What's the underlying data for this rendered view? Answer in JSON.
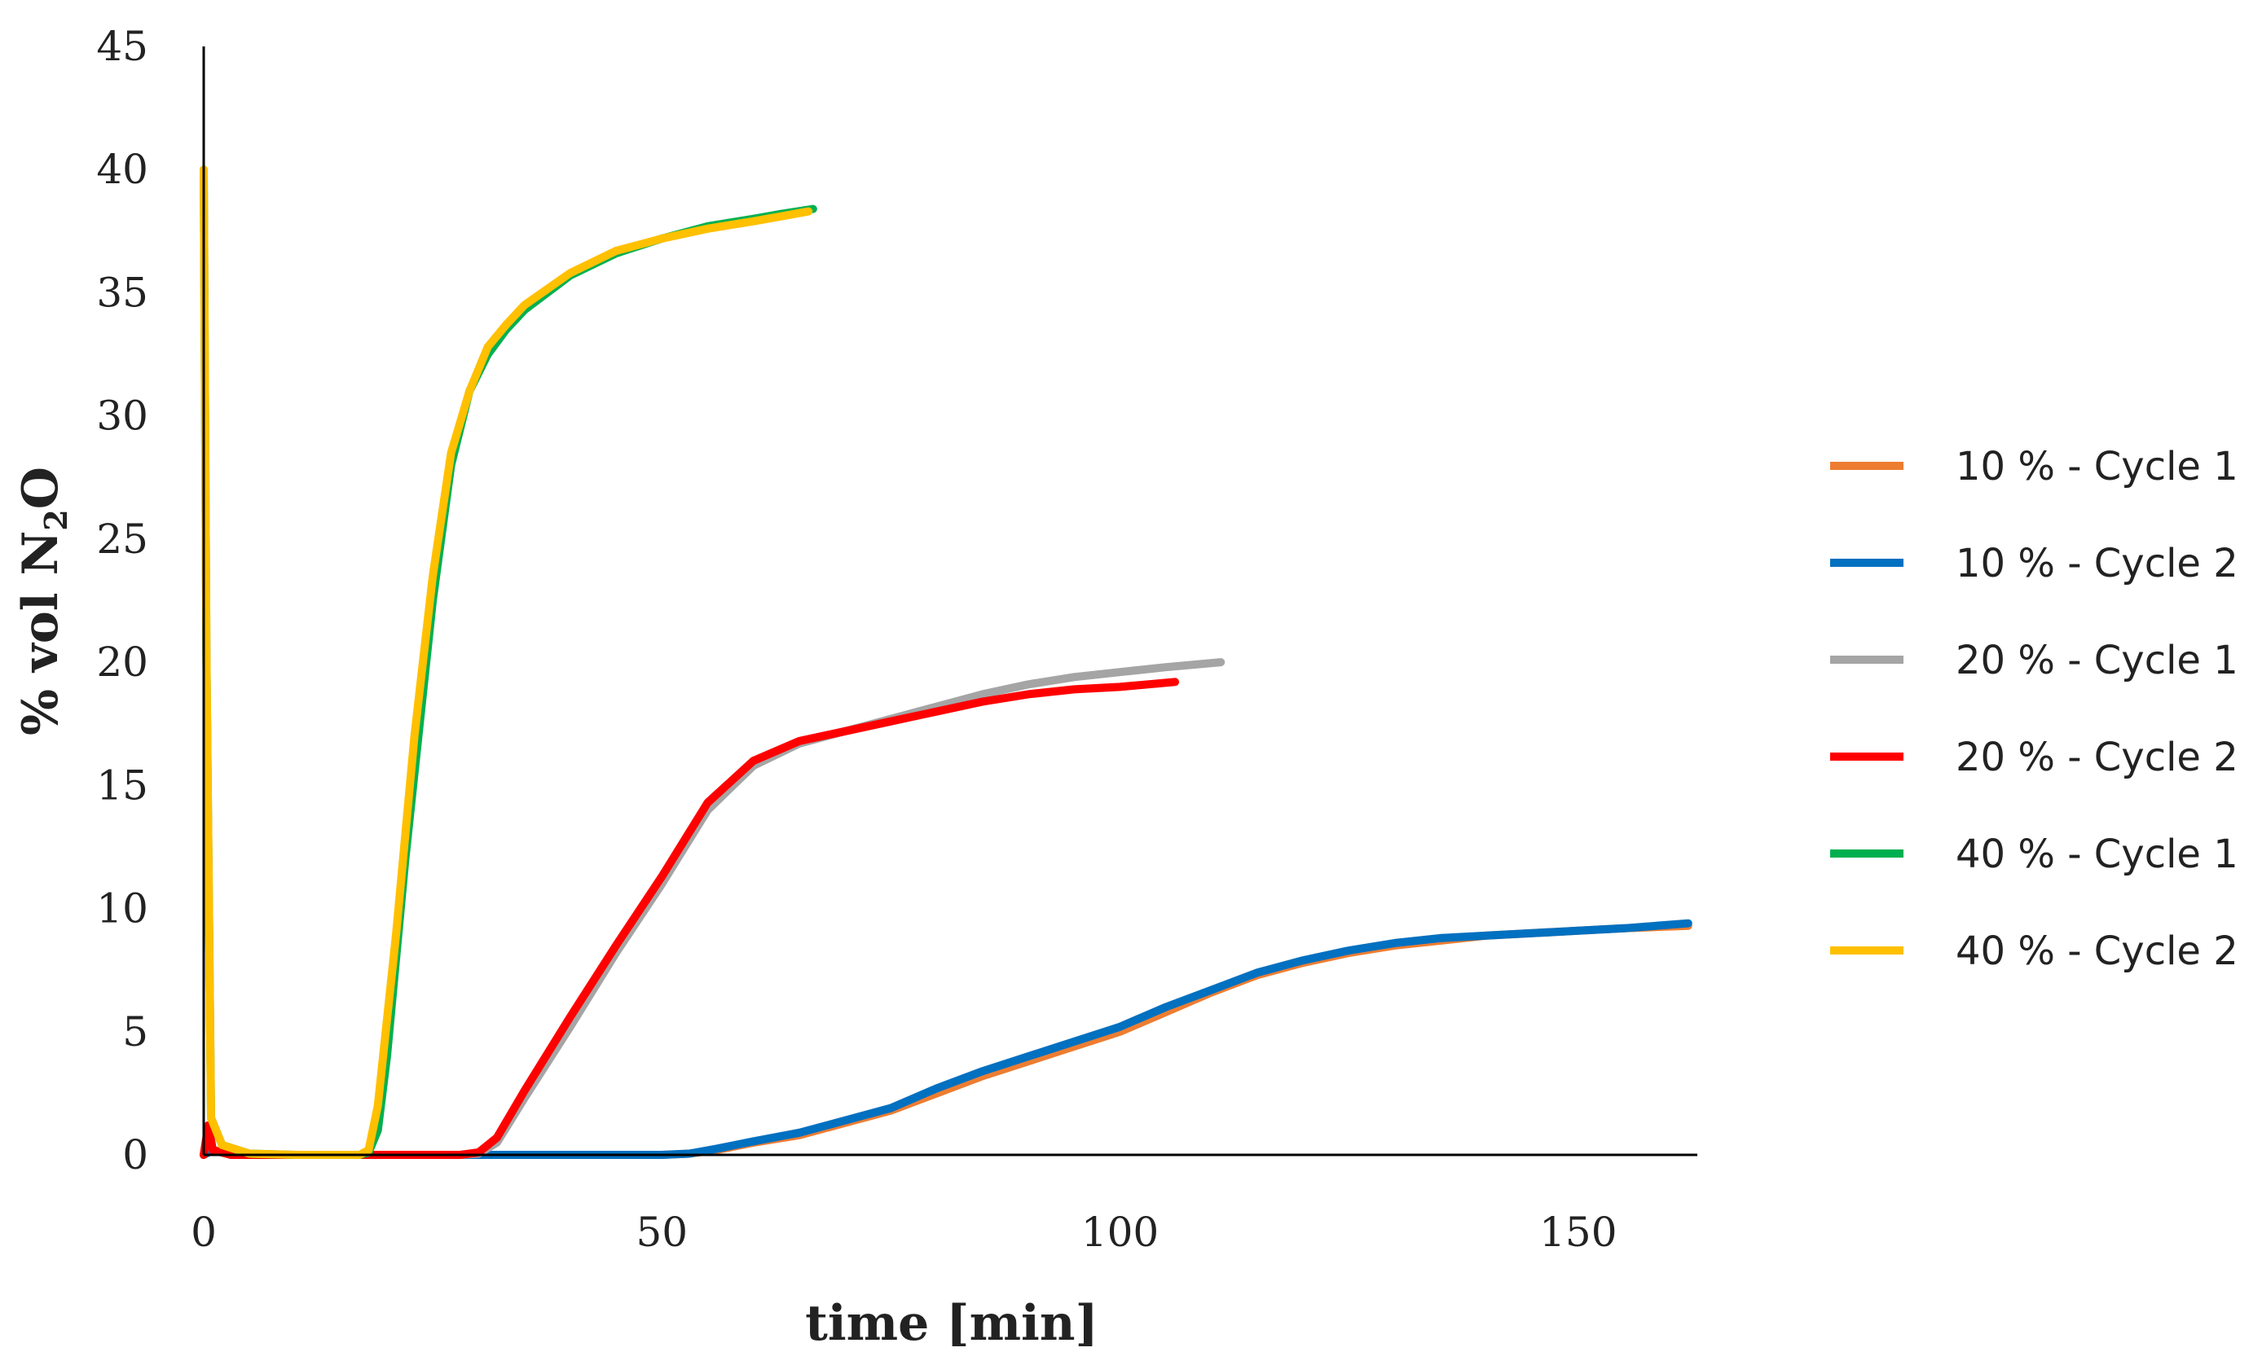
{
  "chart_data": {
    "type": "line",
    "title": "",
    "xlabel": "time [min]",
    "ylabel_main": "% vol N",
    "ylabel_sub": "2",
    "ylabel_end": "O",
    "xlim": [
      0,
      163
    ],
    "ylim": [
      0,
      45
    ],
    "x_ticks": [
      0,
      50,
      100,
      150
    ],
    "y_ticks": [
      0,
      5,
      10,
      15,
      20,
      25,
      30,
      35,
      40,
      45
    ],
    "grid": false,
    "legend_position": "right",
    "series": [
      {
        "name": "10 % - Cycle 1",
        "color": "#ED7D31",
        "x": [
          0,
          1,
          3,
          10,
          20,
          30,
          40,
          50,
          53,
          56,
          60,
          65,
          70,
          75,
          80,
          85,
          90,
          95,
          100,
          105,
          110,
          115,
          120,
          125,
          130,
          135,
          140,
          145,
          150,
          155,
          162
        ],
        "y": [
          0,
          0.2,
          0,
          0,
          0,
          0,
          0,
          0,
          0.05,
          0.2,
          0.5,
          0.8,
          1.3,
          1.8,
          2.5,
          3.2,
          3.8,
          4.4,
          5.0,
          5.8,
          6.6,
          7.3,
          7.8,
          8.2,
          8.5,
          8.7,
          8.9,
          9.0,
          9.1,
          9.2,
          9.3
        ]
      },
      {
        "name": "10 % - Cycle 2",
        "color": "#0070C0",
        "x": [
          0,
          1,
          3,
          10,
          20,
          30,
          40,
          50,
          53,
          56,
          60,
          65,
          70,
          75,
          80,
          85,
          90,
          95,
          100,
          105,
          110,
          115,
          120,
          125,
          130,
          135,
          140,
          145,
          150,
          155,
          162
        ],
        "y": [
          0,
          0.2,
          0,
          0,
          0,
          0,
          0,
          0,
          0.05,
          0.25,
          0.55,
          0.9,
          1.4,
          1.9,
          2.7,
          3.4,
          4.0,
          4.6,
          5.2,
          6.0,
          6.7,
          7.4,
          7.9,
          8.3,
          8.6,
          8.8,
          8.9,
          9.0,
          9.1,
          9.2,
          9.4
        ]
      },
      {
        "name": "20 % - Cycle 1",
        "color": "#A5A5A5",
        "x": [
          0,
          0.5,
          1,
          3,
          10,
          20,
          28,
          30,
          32,
          35,
          40,
          45,
          50,
          55,
          60,
          65,
          70,
          75,
          80,
          85,
          90,
          95,
          100,
          105,
          111
        ],
        "y": [
          0,
          1.0,
          0.2,
          0,
          0,
          0,
          0,
          0.05,
          0.5,
          2.3,
          5.2,
          8.2,
          11.0,
          14.0,
          15.8,
          16.7,
          17.2,
          17.7,
          18.2,
          18.7,
          19.1,
          19.4,
          19.6,
          19.8,
          20.0
        ]
      },
      {
        "name": "20 % - Cycle 2",
        "color": "#FF0000",
        "x": [
          0,
          0.5,
          1,
          3,
          10,
          20,
          28,
          30,
          32,
          35,
          40,
          45,
          50,
          55,
          60,
          65,
          70,
          75,
          80,
          85,
          90,
          95,
          100,
          106
        ],
        "y": [
          0,
          1.2,
          0.2,
          0,
          0,
          0,
          0,
          0.1,
          0.7,
          2.6,
          5.6,
          8.5,
          11.3,
          14.3,
          16.0,
          16.8,
          17.2,
          17.6,
          18.0,
          18.4,
          18.7,
          18.9,
          19.0,
          19.2
        ]
      },
      {
        "name": "40 % - Cycle 1",
        "color": "#00B050",
        "x": [
          0,
          0.3,
          0.8,
          2,
          5,
          10,
          17,
          18,
          19,
          20,
          22,
          25,
          27,
          29,
          31,
          33,
          35,
          40,
          45,
          50,
          55,
          60,
          63,
          66.5
        ],
        "y": [
          40,
          20,
          1.5,
          0.4,
          0.05,
          0,
          0,
          0.1,
          1.0,
          4.0,
          12.0,
          22.5,
          28.0,
          31.0,
          32.5,
          33.5,
          34.3,
          35.7,
          36.6,
          37.2,
          37.7,
          38.0,
          38.2,
          38.4
        ]
      },
      {
        "name": "40 % - Cycle 2",
        "color": "#FFC000",
        "x": [
          0,
          0.3,
          0.8,
          2,
          5,
          10,
          17,
          18,
          19,
          21,
          23,
          25,
          27,
          29,
          31,
          33,
          35,
          40,
          45,
          50,
          55,
          60,
          63,
          66
        ],
        "y": [
          40,
          20,
          1.5,
          0.4,
          0.05,
          0,
          0,
          0.2,
          2.0,
          9.0,
          17.0,
          23.5,
          28.5,
          31.0,
          32.8,
          33.7,
          34.5,
          35.8,
          36.7,
          37.2,
          37.6,
          37.9,
          38.1,
          38.3
        ]
      }
    ]
  }
}
